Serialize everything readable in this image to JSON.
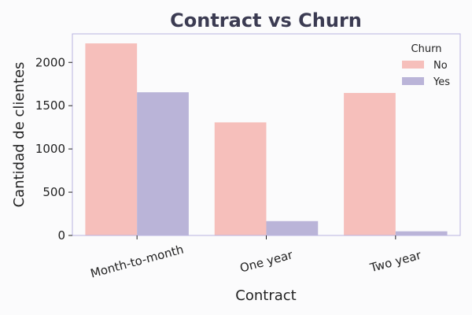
{
  "chart_data": {
    "type": "bar",
    "title": "Contract vs Churn",
    "xlabel": "Contract",
    "ylabel": "Cantidad de clientes",
    "categories": [
      "Month-to-month",
      "One year",
      "Two year"
    ],
    "series": [
      {
        "name": "No",
        "values": [
          2220,
          1307,
          1647
        ],
        "color": "#f6bfbb"
      },
      {
        "name": "Yes",
        "values": [
          1655,
          166,
          48
        ],
        "color": "#bab4d8"
      }
    ],
    "ylim": [
      0,
      2330
    ],
    "yticks": [
      0,
      500,
      1000,
      1500,
      2000
    ],
    "grid": false,
    "legend": {
      "title": "Churn",
      "position": "top-right"
    },
    "frame_color": "#b8b3e0"
  }
}
